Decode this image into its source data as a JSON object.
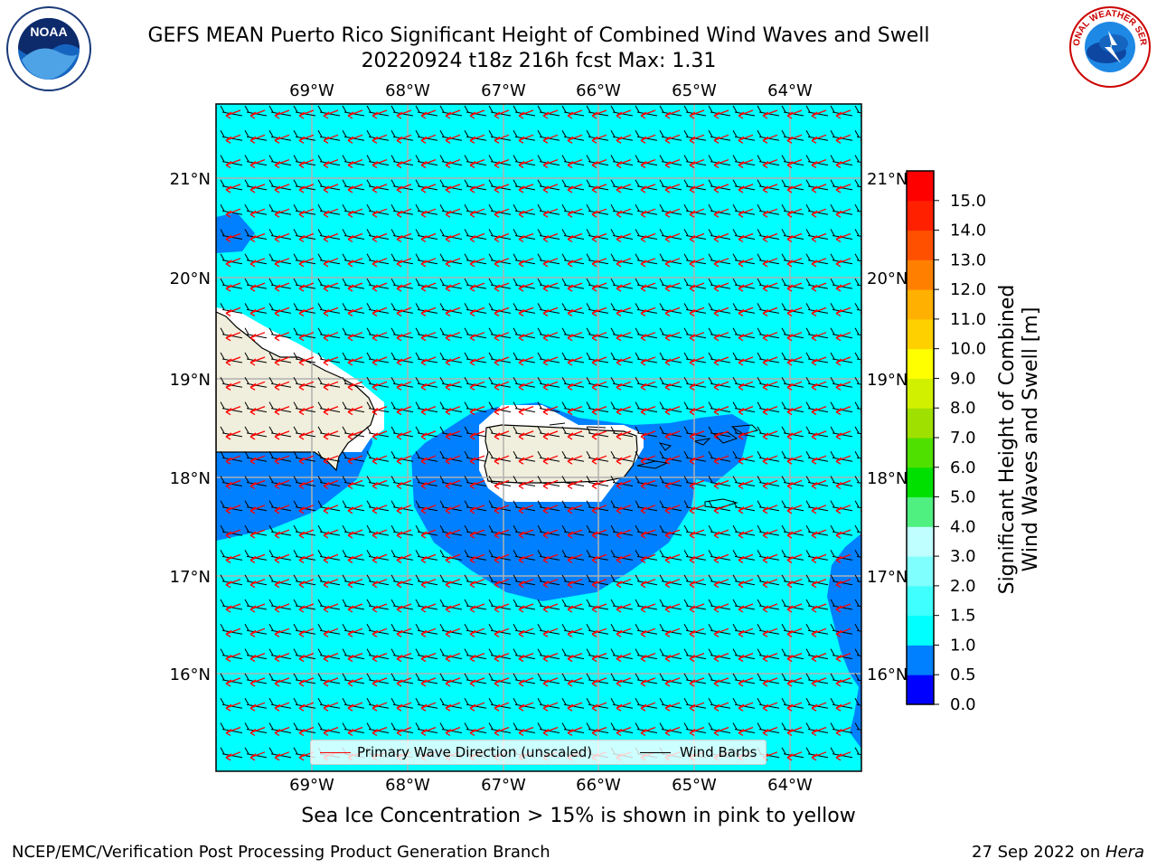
{
  "header": {
    "title": "GEFS MEAN Puerto Rico Significant Height of Combined Wind Waves and Swell",
    "subtitle": "20220924 t18z 216h fcst   Max: 1.31"
  },
  "logos": {
    "noaa": {
      "name": "noaa-logo",
      "text": "NOAA"
    },
    "nws": {
      "name": "nws-logo",
      "text": "NATIONAL WEATHER SERVICE"
    }
  },
  "map": {
    "lon_labels": [
      "69°W",
      "68°W",
      "67°W",
      "66°W",
      "65°W",
      "64°W"
    ],
    "lat_labels": [
      "21°N",
      "20°N",
      "19°N",
      "18°N",
      "17°N",
      "16°N"
    ],
    "lon_range": [
      -70.0,
      -63.25
    ],
    "lat_range": [
      15.0,
      21.75
    ],
    "max_value": 1.31,
    "colors": {
      "ocean_1_0_to_1_5": "#00ffff",
      "ocean_0_5_to_1_0": "#0080ff",
      "land": "#f0eedc",
      "wave_arrow": "#ff0000",
      "wind_barb": "#000000"
    }
  },
  "colorbar": {
    "label_line1": "Significant Height of Combined",
    "label_line2": "Wind Waves and Swell [m]",
    "ticks": [
      "0.0",
      "0.5",
      "1.0",
      "1.5",
      "2.0",
      "3.0",
      "4.0",
      "5.0",
      "6.0",
      "7.0",
      "8.0",
      "9.0",
      "10.0",
      "11.0",
      "12.0",
      "13.0",
      "14.0",
      "15.0"
    ],
    "colors": [
      "#0000ff",
      "#0080ff",
      "#00ffff",
      "#40ffff",
      "#80ffff",
      "#c0ffff",
      "#50f080",
      "#00e000",
      "#50e000",
      "#a0e000",
      "#d0f000",
      "#ffff00",
      "#ffd000",
      "#ffb000",
      "#ff8000",
      "#ff5000",
      "#ff2000",
      "#ff0000"
    ]
  },
  "legend": {
    "wave_label": "Primary Wave Direction (unscaled)",
    "barb_label": "Wind Barbs"
  },
  "caption": "Sea Ice Concentration > 15% is shown in pink to yellow",
  "footer": {
    "left": "NCEP/EMC/Verification Post Processing Product Generation Branch",
    "right_prefix": "27 Sep 2022 on ",
    "right_host": "Hera"
  }
}
